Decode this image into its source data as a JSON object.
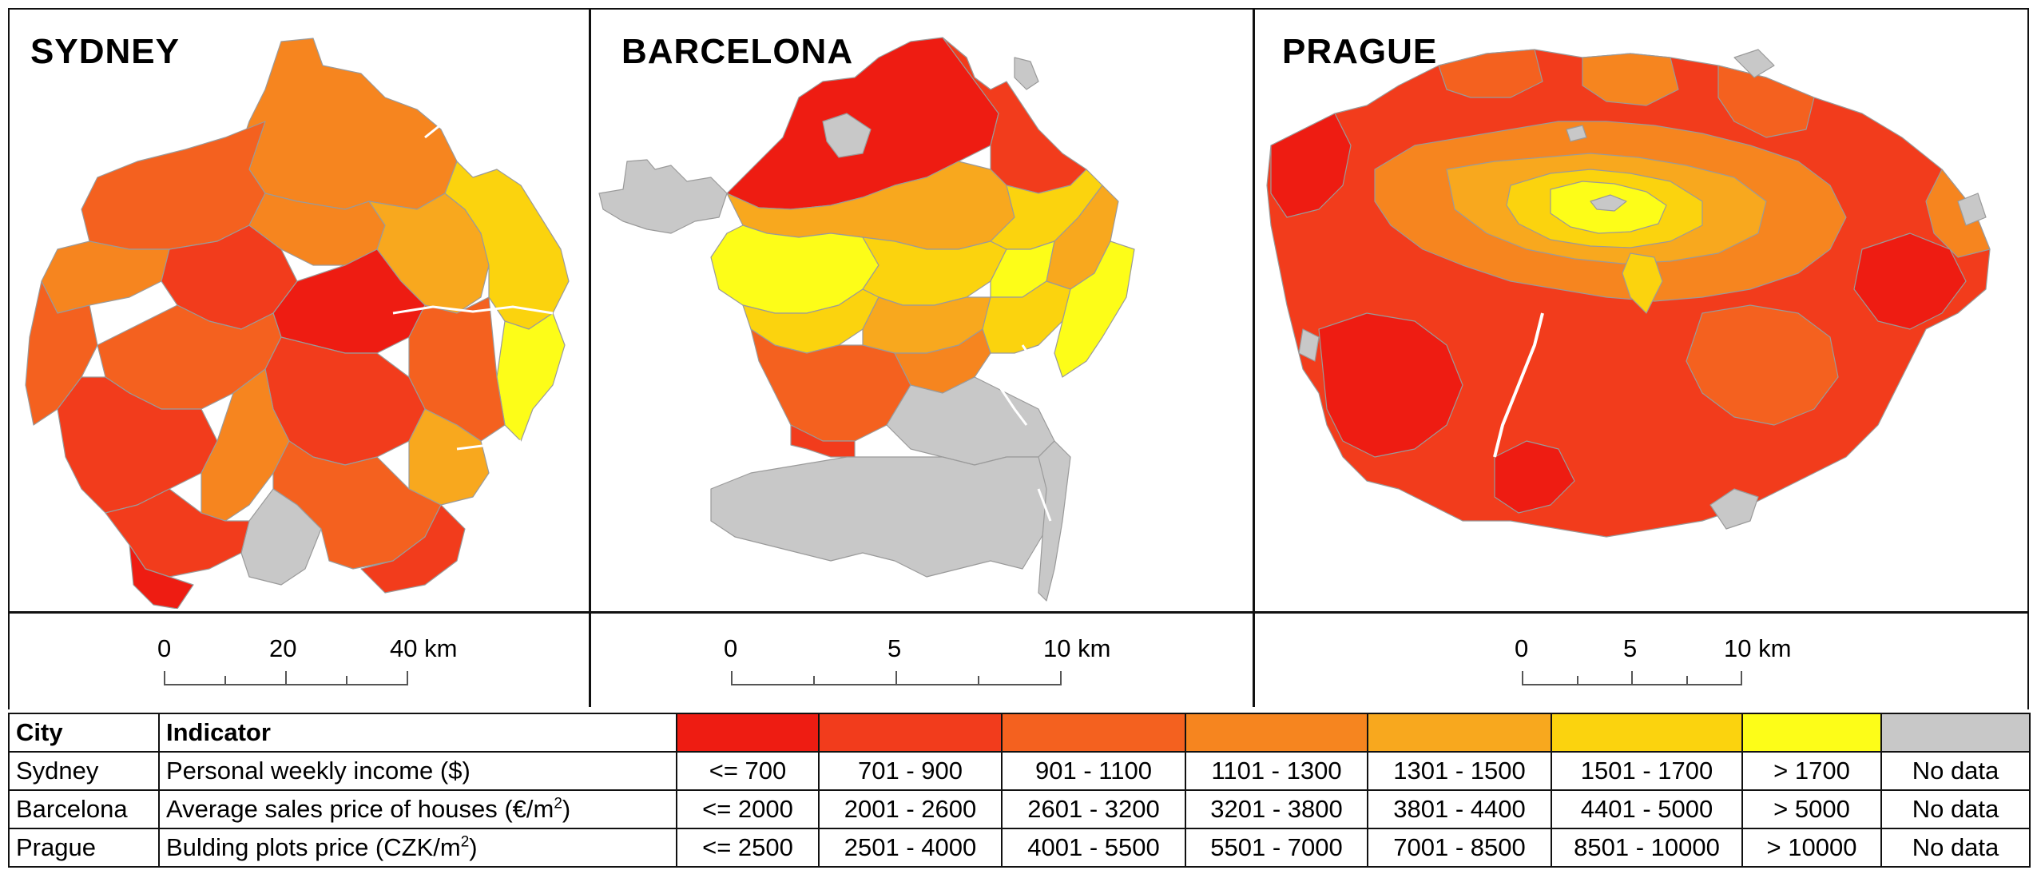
{
  "palette": {
    "c1": "#ee1c12",
    "c2": "#f23c1c",
    "c3": "#f4611f",
    "c4": "#f6851f",
    "c5": "#f8a81e",
    "c6": "#fbd30e",
    "c7": "#fdfd18",
    "nodata": "#c8c8c8"
  },
  "panels": [
    {
      "title": "SYDNEY",
      "scale": {
        "labels": [
          "0",
          "20",
          "40 km"
        ]
      }
    },
    {
      "title": "BARCELONA",
      "scale": {
        "labels": [
          "0",
          "5",
          "10 km"
        ]
      }
    },
    {
      "title": "PRAGUE",
      "scale": {
        "labels": [
          "0",
          "5",
          "10 km"
        ]
      }
    }
  ],
  "legend": {
    "header": {
      "city": "City",
      "indicator": "Indicator"
    },
    "swatches": [
      "#ee1c12",
      "#f23c1c",
      "#f4611f",
      "#f6851f",
      "#f8a81e",
      "#fbd30e",
      "#fdfd18",
      "#c8c8c8"
    ],
    "rows": [
      {
        "city": "Sydney",
        "indicator": "Personal weekly income ($)",
        "unit_sup": "",
        "classes": [
          "<= 700",
          "701 - 900",
          "901 - 1100",
          "1101 - 1300",
          "1301 - 1500",
          "1501 - 1700",
          "> 1700",
          "No data"
        ]
      },
      {
        "city": "Barcelona",
        "indicator": "Average sales price of houses (€/m",
        "unit_sup": "2",
        "indicator_end": ")",
        "classes": [
          "<= 2000",
          "2001 - 2600",
          "2601 - 3200",
          "3201 - 3800",
          "3801 - 4400",
          "4401 - 5000",
          "> 5000",
          "No data"
        ]
      },
      {
        "city": "Prague",
        "indicator": "Bulding plots price (CZK/m",
        "unit_sup": "2",
        "indicator_end": ")",
        "classes": [
          "<= 2500",
          "2501 - 4000",
          "4001 - 5500",
          "5501 - 7000",
          "7001 - 8500",
          "8501 - 10000",
          "> 10000",
          "No data"
        ]
      }
    ]
  }
}
